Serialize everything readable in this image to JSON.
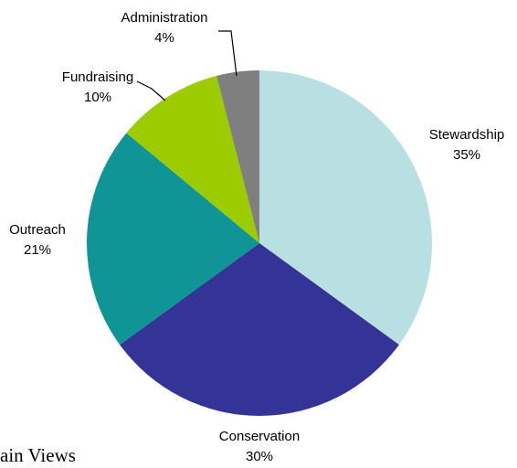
{
  "chart_data": {
    "type": "pie",
    "slices": [
      {
        "label": "Stewardship",
        "value": 35,
        "value_label": "35%",
        "color": "#b8e0e3"
      },
      {
        "label": "Conservation",
        "value": 30,
        "value_label": "30%",
        "color": "#343396"
      },
      {
        "label": "Outreach",
        "value": 21,
        "value_label": "21%",
        "color": "#0f9596"
      },
      {
        "label": "Fundraising",
        "value": 10,
        "value_label": "10%",
        "color": "#9ccc00"
      },
      {
        "label": "Administration",
        "value": 4,
        "value_label": "4%",
        "color": "#7f7f7f"
      }
    ],
    "start": "top",
    "direction": "clockwise",
    "legend": "none"
  },
  "footer": {
    "text": "ain Views"
  }
}
